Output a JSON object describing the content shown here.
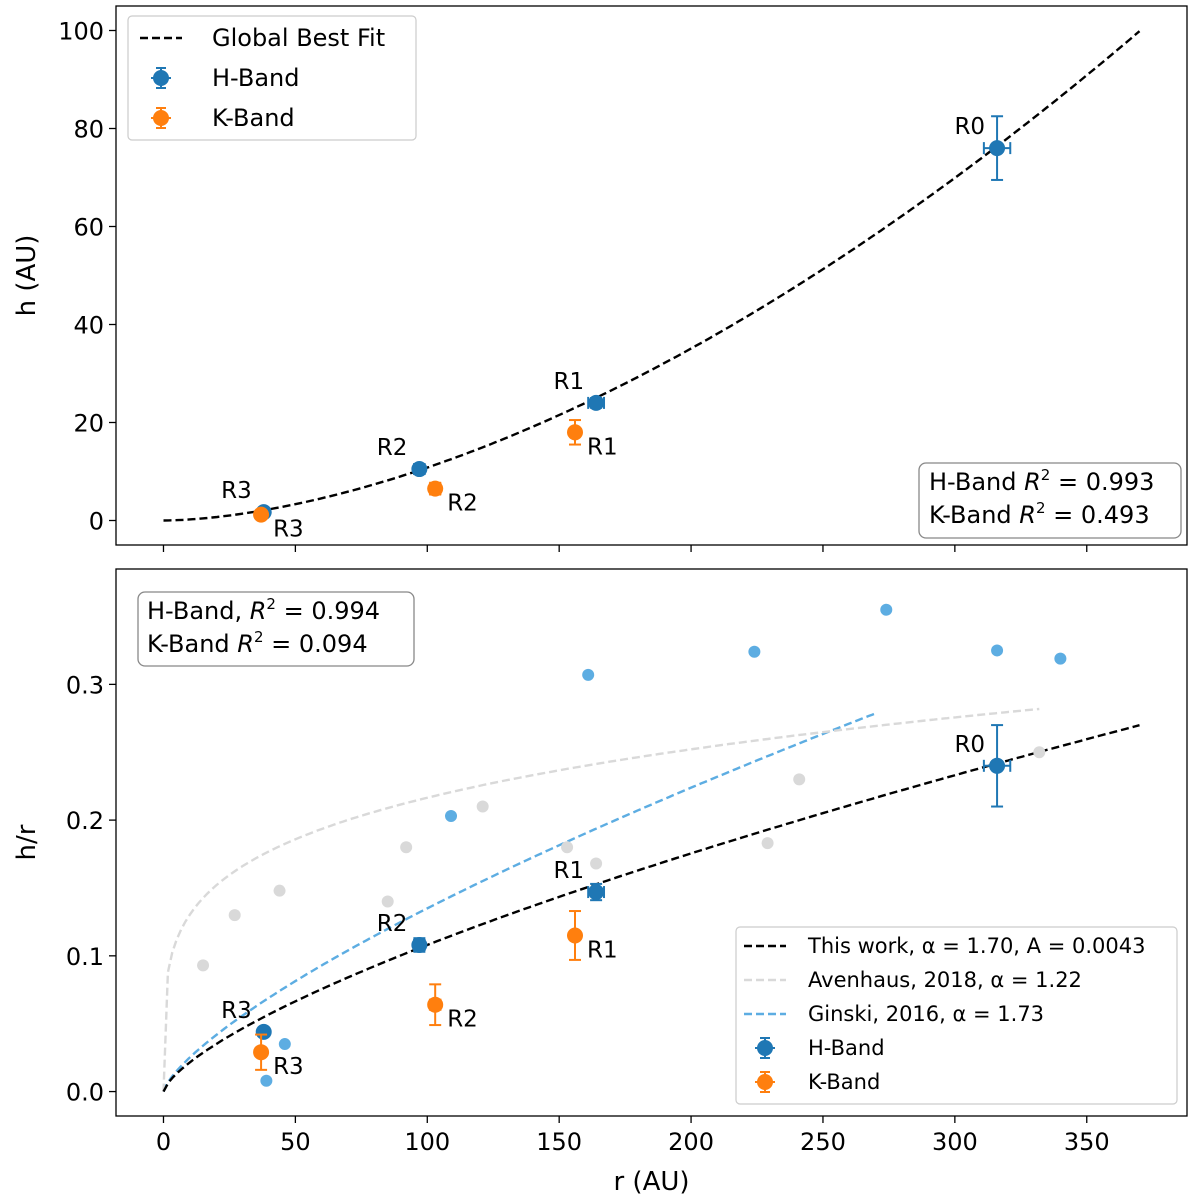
{
  "chart_data": [
    {
      "type": "scatter",
      "panel": "top",
      "ylabel": "h (AU)",
      "xlabel": "",
      "xlim": [
        -18,
        388
      ],
      "ylim": [
        -5,
        105
      ],
      "x_ticks": [
        0,
        50,
        100,
        150,
        200,
        250,
        300,
        350
      ],
      "x_tick_labels_visible": false,
      "y_ticks": [
        0,
        20,
        40,
        60,
        80,
        100
      ],
      "y_tick_labels": [
        "0",
        "20",
        "40",
        "60",
        "80",
        "100"
      ],
      "grid": false,
      "legend_position": "top-left",
      "legend": [
        "Global Best Fit",
        "H-Band",
        "K-Band"
      ],
      "fit_line": {
        "name": "Global Best Fit",
        "A": 0.0043,
        "alpha": 1.7,
        "x_range": [
          0,
          370
        ],
        "color": "#000000",
        "style": "dashed"
      },
      "series": [
        {
          "name": "H-Band",
          "color": "#1f77b4",
          "points": [
            {
              "x": 316,
              "y": 76,
              "yerr": 6.5,
              "xerr": 5,
              "label": "R0",
              "label_pos": "upper-left"
            },
            {
              "x": 164,
              "y": 24,
              "yerr": 1,
              "xerr": 3,
              "label": "R1",
              "label_pos": "upper-left"
            },
            {
              "x": 97,
              "y": 10.5,
              "yerr": 0.5,
              "xerr": 2,
              "label": "R2",
              "label_pos": "upper-left"
            },
            {
              "x": 38,
              "y": 1.7,
              "yerr": 0.3,
              "xerr": 1.5,
              "label": "R3",
              "label_pos": "upper-left"
            }
          ]
        },
        {
          "name": "K-Band",
          "color": "#ff7f0e",
          "points": [
            {
              "x": 156,
              "y": 18,
              "yerr": 2.5,
              "xerr": 1,
              "label": "R1",
              "label_pos": "lower-right"
            },
            {
              "x": 103,
              "y": 6.5,
              "yerr": 1.2,
              "xerr": 2,
              "label": "R2",
              "label_pos": "lower-right"
            },
            {
              "x": 37,
              "y": 1.2,
              "yerr": 0.5,
              "xerr": 1,
              "label": "R3",
              "label_pos": "lower-right"
            }
          ]
        }
      ],
      "annotation": {
        "lines": [
          "H-Band $R^2 = 0.993$",
          "K-Band $R^2 = 0.493$"
        ],
        "color": "#0000ff",
        "position": "bottom-right"
      }
    },
    {
      "type": "scatter",
      "panel": "bottom",
      "xlabel": "r (AU)",
      "ylabel": "h/r",
      "xlim": [
        -18,
        388
      ],
      "ylim": [
        -0.018,
        0.385
      ],
      "x_ticks": [
        0,
        50,
        100,
        150,
        200,
        250,
        300,
        350
      ],
      "x_tick_labels": [
        "0",
        "50",
        "100",
        "150",
        "200",
        "250",
        "300",
        "350"
      ],
      "y_ticks": [
        0.0,
        0.1,
        0.2,
        0.3
      ],
      "y_tick_labels": [
        "0.0",
        "0.1",
        "0.2",
        "0.3"
      ],
      "grid": false,
      "legend_position": "bottom-right",
      "legend": [
        "This work, α = 1.70, A = 0.0043",
        "Avenhaus, 2018, α = 1.22",
        "Ginski, 2016, α = 1.73",
        "H-Band",
        "K-Band"
      ],
      "fit_lines": [
        {
          "name": "This work, α = 1.70, A = 0.0043",
          "alpha": 1.7,
          "A": 0.0043,
          "x_range": [
            0,
            370
          ],
          "color": "#000000",
          "style": "dashed"
        },
        {
          "name": "Avenhaus, 2018, α = 1.22",
          "alpha": 1.22,
          "A": 0.0786,
          "x_range": [
            0,
            332
          ],
          "color": "#d9d9d9",
          "style": "dashed"
        },
        {
          "name": "Ginski, 2016, α = 1.73",
          "alpha": 1.73,
          "A": 0.00468,
          "x_range": [
            0,
            270
          ],
          "color": "#5dade2",
          "style": "dashed"
        }
      ],
      "series": [
        {
          "name": "H-Band",
          "color": "#1f77b4",
          "points": [
            {
              "x": 316,
              "y": 0.24,
              "yerr": 0.03,
              "xerr": 5,
              "label": "R0",
              "label_pos": "upper-left"
            },
            {
              "x": 164,
              "y": 0.147,
              "yerr": 0.006,
              "xerr": 3,
              "label": "R1",
              "label_pos": "upper-left"
            },
            {
              "x": 97,
              "y": 0.108,
              "yerr": 0.005,
              "xerr": 2,
              "label": "R2",
              "label_pos": "upper-left"
            },
            {
              "x": 38,
              "y": 0.044,
              "yerr": 0.003,
              "xerr": 1.5,
              "label": "R3",
              "label_pos": "upper-left"
            }
          ]
        },
        {
          "name": "K-Band",
          "color": "#ff7f0e",
          "points": [
            {
              "x": 156,
              "y": 0.115,
              "yerr": 0.018,
              "xerr": 1,
              "label": "R1",
              "label_pos": "lower-right"
            },
            {
              "x": 103,
              "y": 0.064,
              "yerr": 0.015,
              "xerr": 2,
              "label": "R2",
              "label_pos": "lower-right"
            },
            {
              "x": 37,
              "y": 0.029,
              "yerr": 0.013,
              "xerr": 1,
              "label": "R3",
              "label_pos": "lower-right"
            }
          ]
        },
        {
          "name": "Avenhaus 2018 data",
          "legend": false,
          "color": "#d9d9d9",
          "points": [
            {
              "x": 15,
              "y": 0.093
            },
            {
              "x": 27,
              "y": 0.13
            },
            {
              "x": 44,
              "y": 0.148
            },
            {
              "x": 85,
              "y": 0.14
            },
            {
              "x": 92,
              "y": 0.18
            },
            {
              "x": 121,
              "y": 0.21
            },
            {
              "x": 153,
              "y": 0.18
            },
            {
              "x": 164,
              "y": 0.168
            },
            {
              "x": 229,
              "y": 0.183
            },
            {
              "x": 241,
              "y": 0.23
            },
            {
              "x": 332,
              "y": 0.25
            }
          ]
        },
        {
          "name": "Ginski 2016 data",
          "legend": false,
          "color": "#5dade2",
          "points": [
            {
              "x": 39,
              "y": 0.008
            },
            {
              "x": 46,
              "y": 0.035
            },
            {
              "x": 109,
              "y": 0.203
            },
            {
              "x": 161,
              "y": 0.307
            },
            {
              "x": 224,
              "y": 0.324
            },
            {
              "x": 274,
              "y": 0.355
            },
            {
              "x": 316,
              "y": 0.325
            },
            {
              "x": 340,
              "y": 0.319
            }
          ]
        }
      ],
      "annotation": {
        "lines": [
          "H-Band, $R^2 = 0.994$",
          "K-Band $R^2 = 0.094$"
        ],
        "color": "#0000ff",
        "position": "top-left"
      }
    }
  ]
}
